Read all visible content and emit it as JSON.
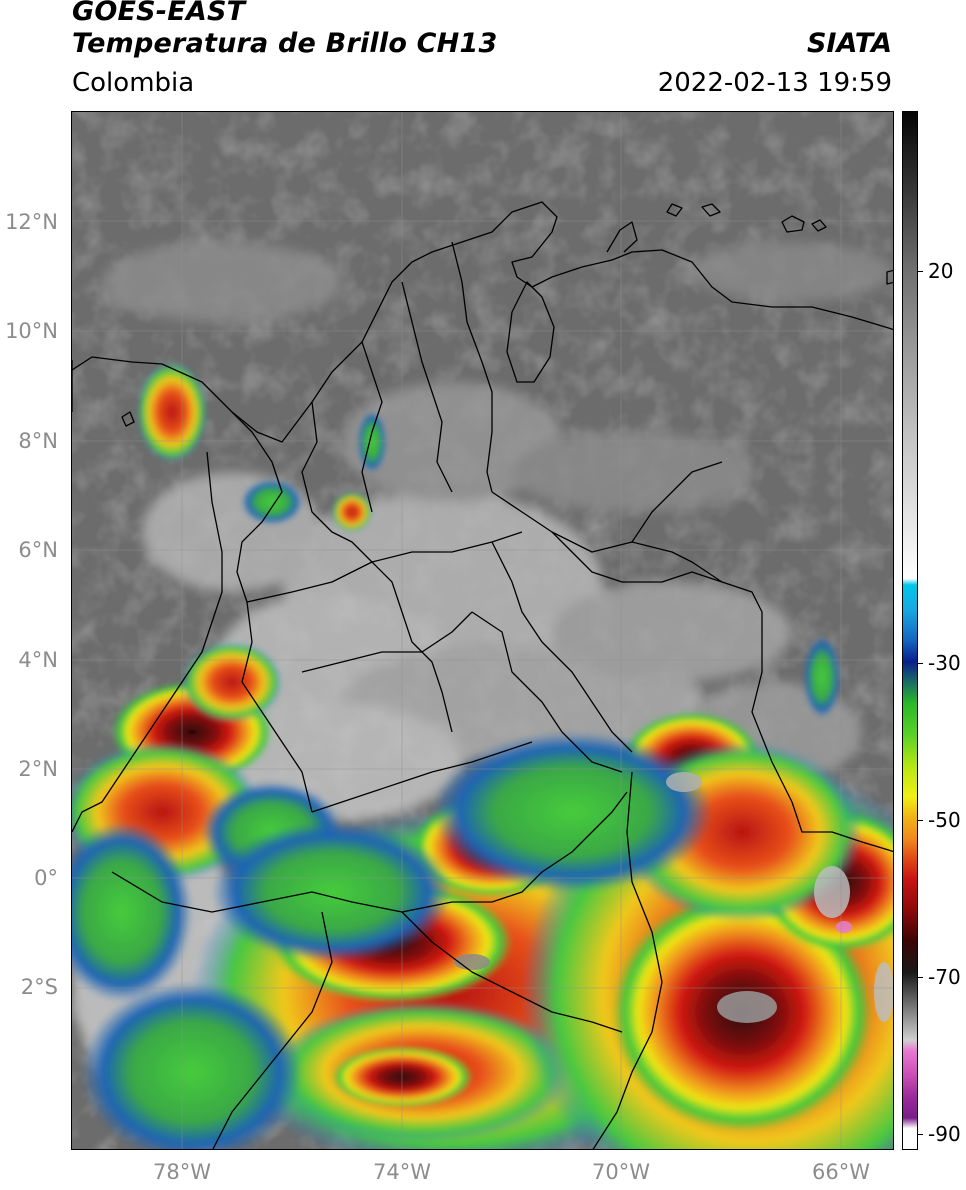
{
  "header": {
    "satellite": "GOES-EAST",
    "product": "Temperatura de Brillo CH13",
    "region": "Colombia",
    "agency": "SIATA",
    "datetime": "2022-02-13 19:59"
  },
  "map": {
    "latitude_labels": [
      "12°N",
      "10°N",
      "8°N",
      "6°N",
      "4°N",
      "2°N",
      "0°",
      "2°S"
    ],
    "longitude_labels": [
      "78°W",
      "74°W",
      "70°W",
      "66°W"
    ]
  },
  "colorbar": {
    "tick_labels": [
      "20",
      "-30",
      "-50",
      "-70",
      "-90"
    ]
  },
  "colors": {
    "cloud_free_gray": "#6a6a6a",
    "cold_blue": "#1e5aa8",
    "green": "#3cc83c",
    "yellow": "#f0e614",
    "orange": "#f08c1e",
    "red": "#c81414",
    "dark_red": "#5a0a0a",
    "pink": "#e87ad2"
  }
}
